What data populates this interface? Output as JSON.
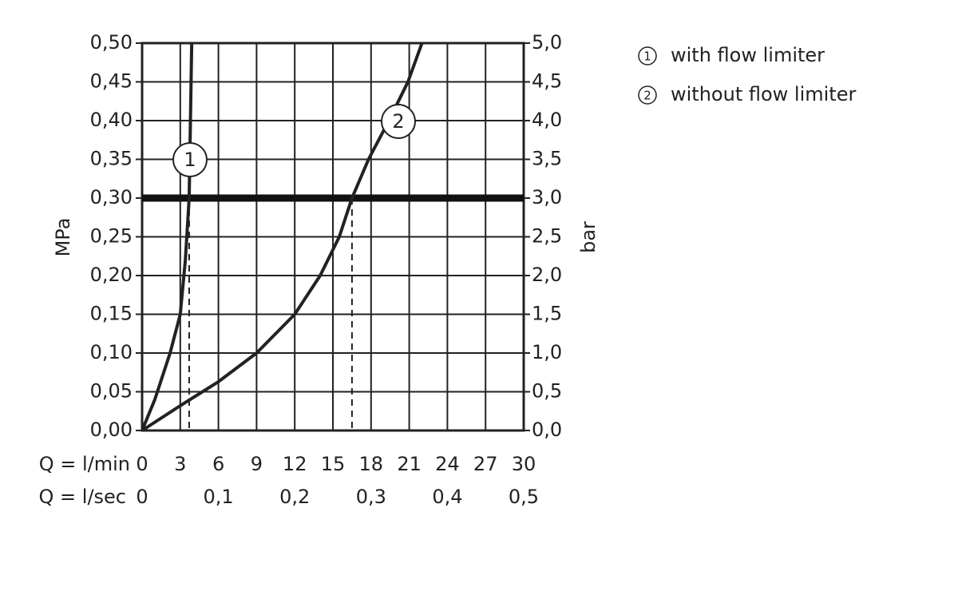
{
  "chart_data": {
    "type": "line",
    "xlabel": "Q = l/min",
    "x2label": "Q = l/sec",
    "ylabel": "MPa",
    "y2label": "bar",
    "xlim": [
      0,
      30
    ],
    "xticks": [
      0,
      3,
      6,
      9,
      12,
      15,
      18,
      21,
      24,
      27,
      30
    ],
    "x2lim": [
      0,
      0.5
    ],
    "x2ticks": [
      0,
      {
        "value": 0.1,
        "label": "0,1"
      },
      {
        "value": 0.2,
        "label": "0,2"
      },
      {
        "value": 0.3,
        "label": "0,3"
      },
      {
        "value": 0.4,
        "label": "0,4"
      },
      {
        "value": 0.5,
        "label": "0,5"
      }
    ],
    "ylim": [
      0,
      0.5
    ],
    "yticks": [
      {
        "value": 0,
        "label": "0,00"
      },
      {
        "value": 0.05,
        "label": "0,05"
      },
      {
        "value": 0.1,
        "label": "0,10"
      },
      {
        "value": 0.15,
        "label": "0,15"
      },
      {
        "value": 0.2,
        "label": "0,20"
      },
      {
        "value": 0.25,
        "label": "0,25"
      },
      {
        "value": 0.3,
        "label": "0,30"
      },
      {
        "value": 0.35,
        "label": "0,35"
      },
      {
        "value": 0.4,
        "label": "0,40"
      },
      {
        "value": 0.45,
        "label": "0,45"
      },
      {
        "value": 0.5,
        "label": "0,50"
      }
    ],
    "y2lim": [
      0,
      5
    ],
    "y2ticks": [
      {
        "value": 0,
        "label": "0,0"
      },
      {
        "value": 0.5,
        "label": "0,5"
      },
      {
        "value": 1,
        "label": "1,0"
      },
      {
        "value": 1.5,
        "label": "1,5"
      },
      {
        "value": 2,
        "label": "2,0"
      },
      {
        "value": 2.5,
        "label": "2,5"
      },
      {
        "value": 3,
        "label": "3,0"
      },
      {
        "value": 3.5,
        "label": "3,5"
      },
      {
        "value": 4,
        "label": "4,0"
      },
      {
        "value": 4.5,
        "label": "4,5"
      },
      {
        "value": 5,
        "label": "5,0"
      }
    ],
    "grid": true,
    "reference_line_y": 0.3,
    "drop_lines_x": [
      3.7,
      16.5
    ],
    "legend": "top-right",
    "series": [
      {
        "name": "with flow limiter",
        "label": "1",
        "color": "#222222",
        "x": [
          0,
          1,
          2.2,
          3.0,
          3.4,
          3.7,
          3.8,
          3.9
        ],
        "values": [
          0,
          0.04,
          0.1,
          0.15,
          0.22,
          0.3,
          0.4,
          0.5
        ]
      },
      {
        "name": "without flow limiter",
        "label": "2",
        "color": "#222222",
        "x": [
          0,
          3,
          6,
          9,
          12,
          14,
          15.5,
          16.5,
          17.8,
          19.4,
          20.9,
          22.0
        ],
        "values": [
          0,
          0.032,
          0.063,
          0.1,
          0.15,
          0.2,
          0.25,
          0.3,
          0.35,
          0.4,
          0.45,
          0.5
        ]
      }
    ]
  }
}
